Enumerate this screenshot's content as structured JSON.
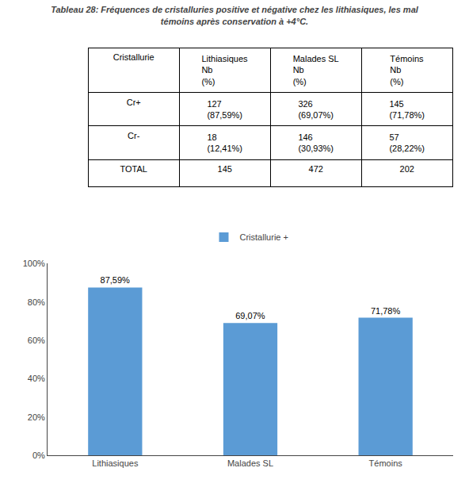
{
  "chart_data": [
    {
      "type": "table",
      "title": "Tableau 28: Fréquences de cristalluries positive et négative chez les lithiasiques, les mal\ntémoins après conservation à +4°C.",
      "columns": [
        "Cristallurie",
        "Lithiasiques\nNb\n(%)",
        "Malades SL\nNb\n(%)",
        "Témoins\nNb\n(%)"
      ],
      "rows": [
        [
          "Cr+",
          "127\n(87,59%)",
          "326\n(69,07%)",
          "145\n(71,78%)"
        ],
        [
          "Cr-",
          "18\n(12,41%)",
          "146\n(30,93%)",
          "57\n(28,22%)"
        ],
        [
          "TOTAL",
          "145",
          "472",
          "202"
        ]
      ]
    },
    {
      "type": "bar",
      "categories": [
        "Lithiasiques",
        "Malades SL",
        "Témoins"
      ],
      "series": [
        {
          "name": "Cristallurie +",
          "color": "#5B9BD5",
          "values": [
            87.59,
            69.07,
            71.78
          ],
          "value_labels": [
            "87,59%",
            "69,07%",
            "71,78%"
          ]
        }
      ],
      "ylim": [
        0,
        100
      ],
      "yticks": [
        {
          "value": 0,
          "label": "0%"
        },
        {
          "value": 20,
          "label": "20%"
        },
        {
          "value": 40,
          "label": "40%"
        },
        {
          "value": 60,
          "label": "60%"
        },
        {
          "value": 80,
          "label": "80%"
        },
        {
          "value": 100,
          "label": "100%"
        }
      ],
      "data_labels": true,
      "grid": false,
      "legend": "top"
    }
  ]
}
